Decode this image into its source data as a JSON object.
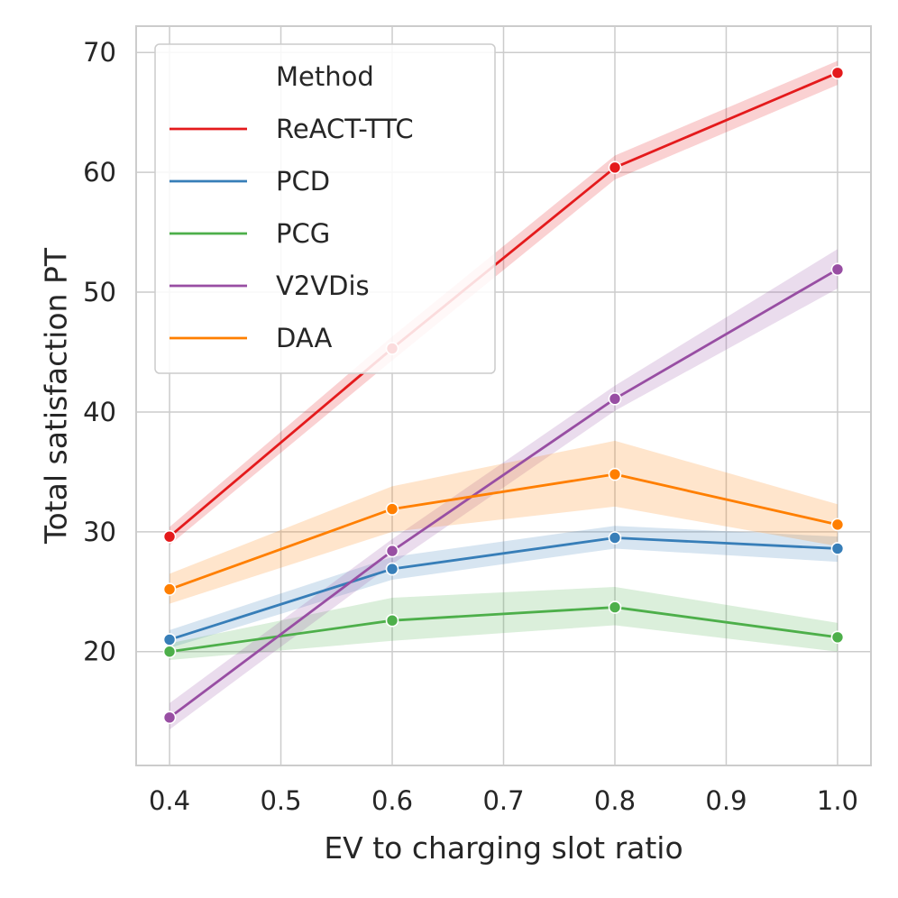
{
  "chart_data": {
    "type": "line",
    "xlabel": "EV to charging slot ratio",
    "ylabel": "Total satisfaction PT",
    "xlim": [
      0.37,
      1.03
    ],
    "ylim": [
      10.5,
      72.2
    ],
    "xticks": [
      "0.4",
      "0.5",
      "0.6",
      "0.7",
      "0.8",
      "0.9",
      "1.0"
    ],
    "yticks": [
      "20",
      "30",
      "40",
      "50",
      "60",
      "70"
    ],
    "grid": true,
    "legend": {
      "title": "Method",
      "placement": "top-left"
    },
    "x": [
      0.4,
      0.6,
      0.8,
      1.0
    ],
    "series": [
      {
        "name": "ReACT-TTC",
        "color": "#e41a1c",
        "values": [
          29.6,
          45.3,
          60.4,
          68.3
        ],
        "lower": [
          28.9,
          44.3,
          59.4,
          67.3
        ],
        "upper": [
          30.4,
          46.3,
          61.4,
          69.3
        ]
      },
      {
        "name": "PCD",
        "color": "#377eb8",
        "values": [
          21.0,
          26.9,
          29.5,
          28.6
        ],
        "lower": [
          20.3,
          26.0,
          28.6,
          27.5
        ],
        "upper": [
          21.8,
          27.9,
          30.5,
          29.6
        ]
      },
      {
        "name": "PCG",
        "color": "#4daf4a",
        "values": [
          20.0,
          22.6,
          23.7,
          21.2
        ],
        "lower": [
          19.3,
          20.9,
          22.2,
          20.0
        ],
        "upper": [
          20.7,
          24.5,
          25.4,
          22.4
        ]
      },
      {
        "name": "V2VDis",
        "color": "#984ea3",
        "values": [
          14.5,
          28.4,
          41.1,
          51.9
        ],
        "lower": [
          13.5,
          27.3,
          40.1,
          50.3
        ],
        "upper": [
          15.7,
          29.4,
          42.2,
          53.6
        ]
      },
      {
        "name": "DAA",
        "color": "#ff7f00",
        "values": [
          25.2,
          31.9,
          34.8,
          30.6
        ],
        "lower": [
          24.0,
          30.0,
          32.1,
          28.8
        ],
        "upper": [
          26.5,
          33.8,
          37.6,
          32.3
        ]
      }
    ]
  }
}
